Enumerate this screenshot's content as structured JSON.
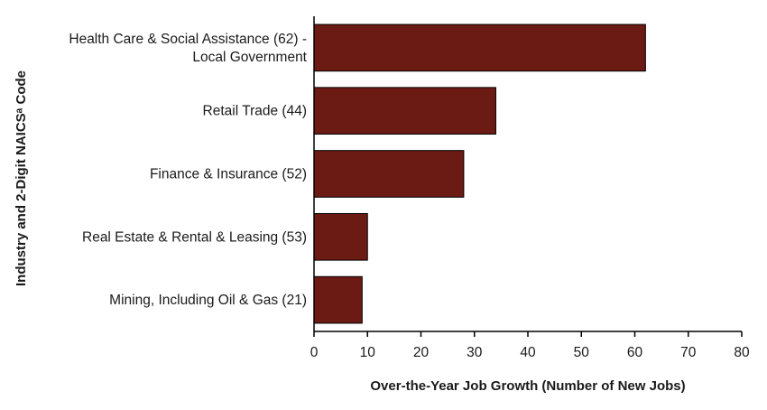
{
  "chart_data": {
    "type": "bar",
    "orientation": "horizontal",
    "categories": [
      [
        "Health Care & Social Assistance (62) -",
        "Local Government"
      ],
      [
        "Retail Trade (44)"
      ],
      [
        "Finance & Insurance (52)"
      ],
      [
        "Real Estate & Rental & Leasing (53)"
      ],
      [
        "Mining, Including Oil & Gas (21)"
      ]
    ],
    "values": [
      62,
      34,
      28,
      10,
      9
    ],
    "xlabel": "Over-the-Year Job Growth (Number of New Jobs)",
    "ylabel": "Industry and 2-Digit NAICSᵃ Code",
    "xlim": [
      0,
      80
    ],
    "xticks": [
      0,
      10,
      20,
      30,
      40,
      50,
      60,
      70,
      80
    ],
    "grid": false,
    "bar_color": "#6b1a14",
    "bar_edge_color": "#000000"
  }
}
